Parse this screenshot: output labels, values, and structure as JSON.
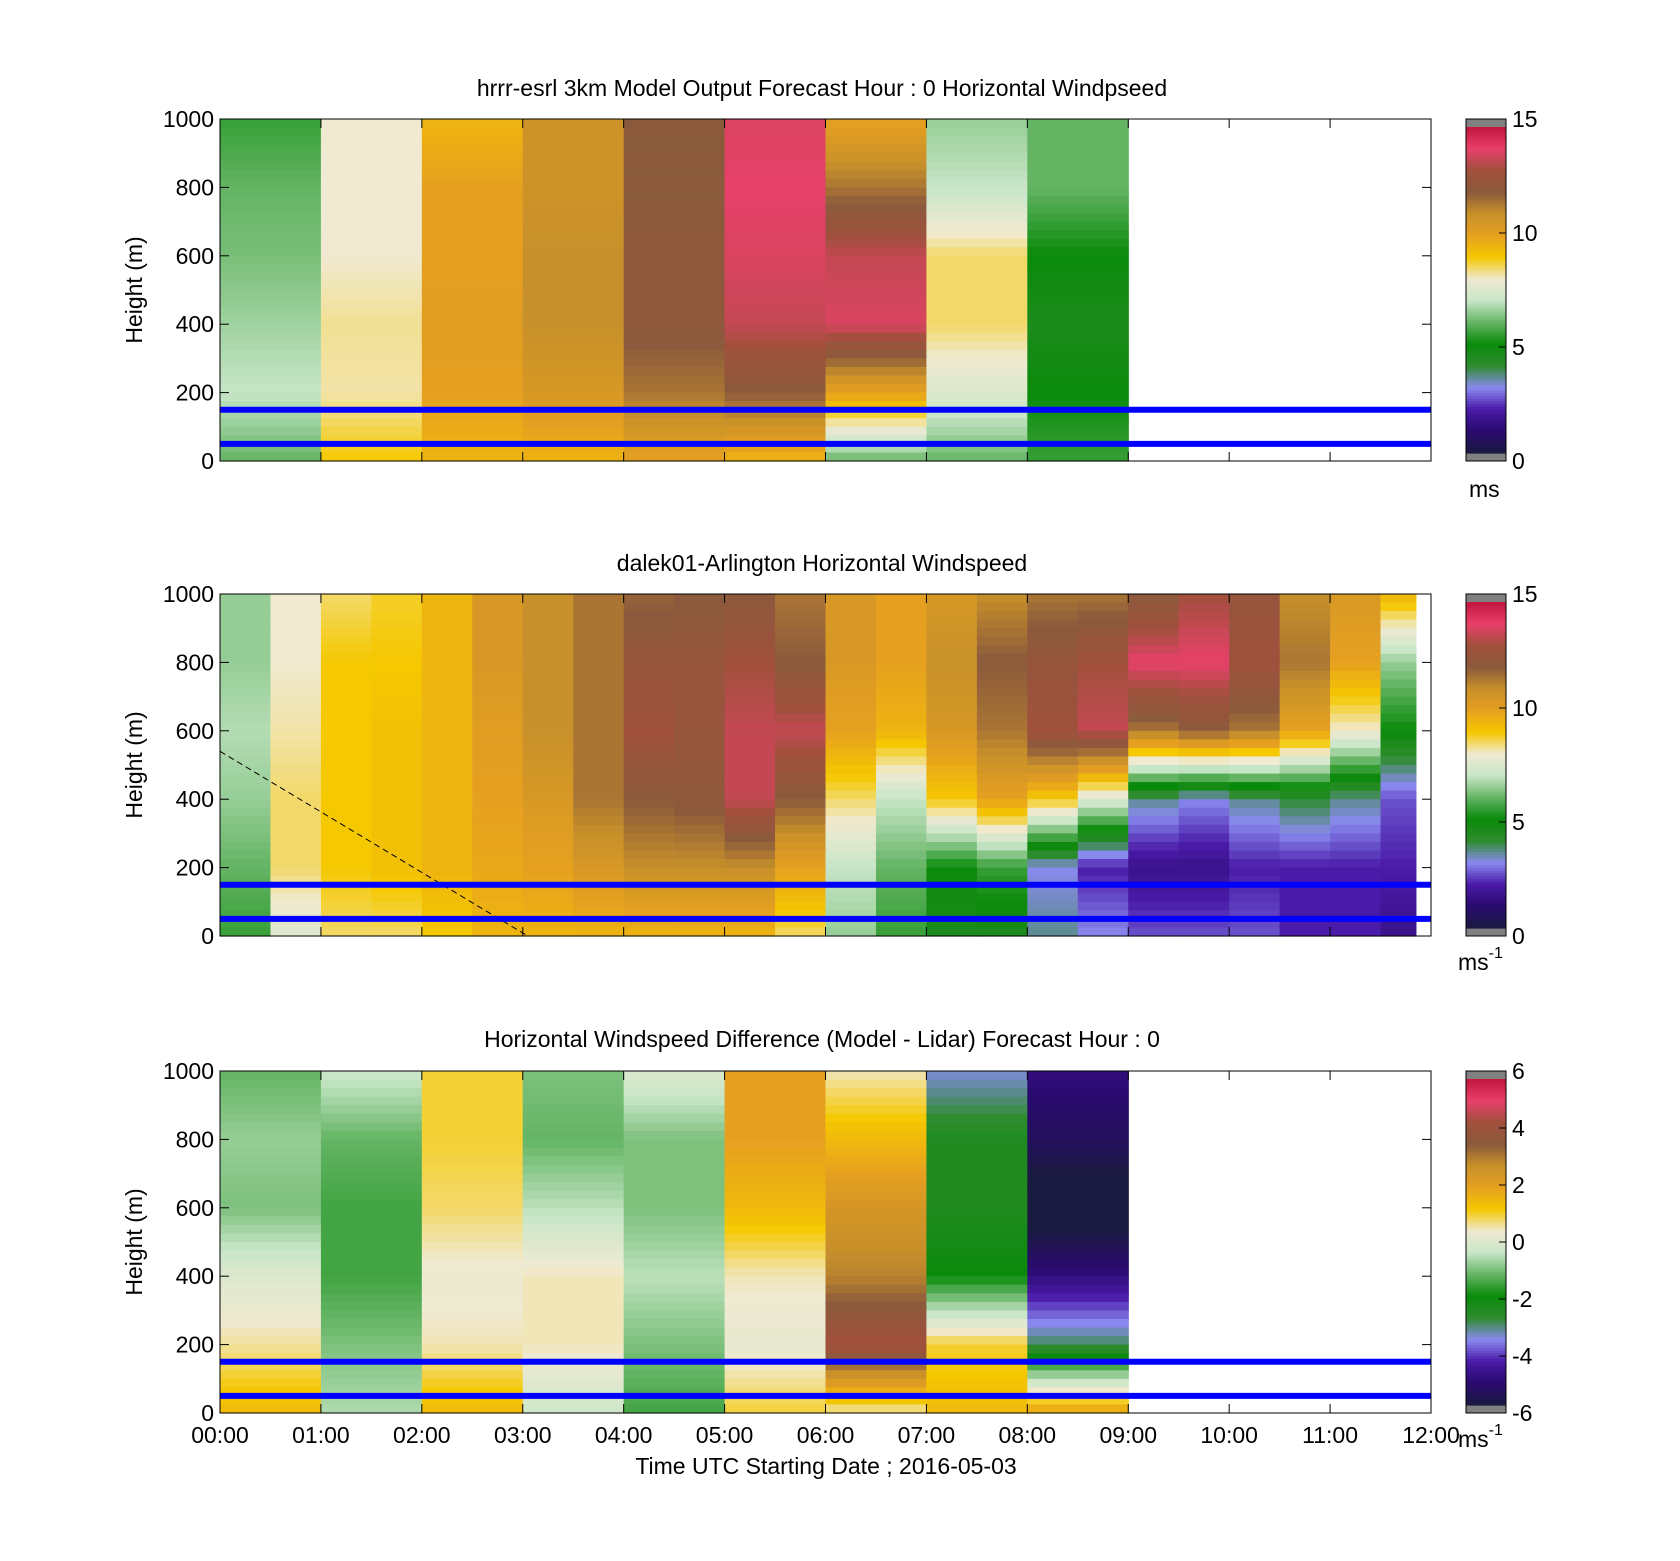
{
  "colorbar_stops": [
    "#1a1a40",
    "#2a0a6e",
    "#4a1aa8",
    "#8a8af0",
    "#2e8c2e",
    "#0a8a0a",
    "#64b464",
    "#c8e6c8",
    "#f0ead2",
    "#f5c800",
    "#e6a020",
    "#c8902a",
    "#8b5a3c",
    "#a0503c",
    "#e8406a",
    "#c0143c"
  ],
  "colorbar_end_color": "#808080",
  "blue_line_color": "#0000ff",
  "blue_lines_heights_m": [
    50,
    150
  ],
  "xtick_labels": [
    "00:00",
    "01:00",
    "02:00",
    "03:00",
    "04:00",
    "05:00",
    "06:00",
    "07:00",
    "08:00",
    "09:00",
    "10:00",
    "11:00",
    "12:00"
  ],
  "xlabel": "Time UTC  Starting Date ; 2016-05-03",
  "chart_data": [
    {
      "type": "heatmap",
      "title": "hrrr-esrl 3km Model Output   Forecast Hour : 0 Horizontal Windpseed",
      "ylabel": "Height (m)",
      "ylim": [
        0,
        1000
      ],
      "yticks": [
        "0",
        "200",
        "400",
        "600",
        "800",
        "1000"
      ],
      "xlim_hours": [
        0,
        12
      ],
      "colorbar": {
        "min": 0,
        "max": 15,
        "ticks": [
          "0",
          "5",
          "10",
          "15"
        ],
        "unit": "ms"
      },
      "heights_m": [
        1000,
        800,
        600,
        400,
        200,
        0
      ],
      "columns": [
        {
          "hour_start": 0,
          "hour_end": 1,
          "profile": [
            5.5,
            6.0,
            6.2,
            6.6,
            7.0,
            6.0
          ]
        },
        {
          "hour_start": 1,
          "hour_end": 2,
          "profile": [
            8.0,
            8.0,
            8.0,
            8.3,
            8.2,
            9.0
          ]
        },
        {
          "hour_start": 2,
          "hour_end": 3,
          "profile": [
            9.5,
            10.0,
            10.0,
            10.2,
            10.0,
            9.5
          ]
        },
        {
          "hour_start": 3,
          "hour_end": 4,
          "profile": [
            10.8,
            10.8,
            11.0,
            11.0,
            10.5,
            9.5
          ]
        },
        {
          "hour_start": 4,
          "hour_end": 5,
          "profile": [
            12.0,
            12.0,
            12.2,
            12.2,
            11.5,
            10.0
          ]
        },
        {
          "hour_start": 5,
          "hour_end": 6,
          "profile": [
            13.8,
            14.0,
            13.8,
            13.5,
            12.0,
            9.5
          ]
        },
        {
          "hour_start": 6,
          "hour_end": 7,
          "profile": [
            10.0,
            11.5,
            13.5,
            13.8,
            10.0,
            6.0
          ]
        },
        {
          "hour_start": 7,
          "hour_end": 8,
          "profile": [
            6.5,
            7.0,
            8.5,
            8.5,
            7.5,
            6.0
          ]
        },
        {
          "hour_start": 8,
          "hour_end": 9,
          "profile": [
            6.0,
            6.0,
            5.0,
            4.5,
            5.0,
            5.5
          ]
        }
      ],
      "horizontal_lines_m": [
        50,
        150
      ]
    },
    {
      "type": "heatmap",
      "title": "dalek01-Arlington  Horizontal Windspeed",
      "ylabel": "Height (m)",
      "ylim": [
        0,
        1000
      ],
      "yticks": [
        "0",
        "200",
        "400",
        "600",
        "800",
        "1000"
      ],
      "xlim_hours": [
        0,
        12
      ],
      "colorbar": {
        "min": 0,
        "max": 15,
        "ticks": [
          "0",
          "5",
          "10",
          "15"
        ],
        "unit": "ms-1"
      },
      "heights_m": [
        1000,
        800,
        600,
        400,
        200,
        0
      ],
      "columns": [
        {
          "hour_start": 0.0,
          "hour_end": 0.5,
          "profile": [
            6.5,
            6.5,
            6.8,
            6.5,
            6.0,
            5.5
          ]
        },
        {
          "hour_start": 0.5,
          "hour_end": 1.0,
          "profile": [
            8.0,
            8.0,
            8.2,
            8.5,
            8.5,
            7.5
          ]
        },
        {
          "hour_start": 1.0,
          "hour_end": 1.5,
          "profile": [
            8.5,
            9.0,
            9.0,
            9.0,
            9.0,
            8.5
          ]
        },
        {
          "hour_start": 1.5,
          "hour_end": 2.0,
          "profile": [
            8.8,
            9.0,
            9.2,
            9.2,
            9.2,
            8.5
          ]
        },
        {
          "hour_start": 2.0,
          "hour_end": 2.5,
          "profile": [
            9.5,
            9.5,
            9.5,
            9.5,
            9.5,
            9.0
          ]
        },
        {
          "hour_start": 2.5,
          "hour_end": 3.0,
          "profile": [
            10.5,
            10.5,
            10.2,
            10.0,
            9.8,
            9.5
          ]
        },
        {
          "hour_start": 3.0,
          "hour_end": 3.5,
          "profile": [
            11.0,
            11.0,
            11.0,
            10.5,
            10.0,
            9.5
          ]
        },
        {
          "hour_start": 3.5,
          "hour_end": 4.0,
          "profile": [
            11.5,
            11.5,
            11.5,
            11.5,
            10.5,
            9.5
          ]
        },
        {
          "hour_start": 4.0,
          "hour_end": 4.5,
          "profile": [
            11.8,
            12.5,
            13.0,
            12.0,
            11.0,
            9.5
          ]
        },
        {
          "hour_start": 4.5,
          "hour_end": 5.0,
          "profile": [
            12.0,
            12.5,
            12.5,
            12.2,
            11.0,
            9.5
          ]
        },
        {
          "hour_start": 5.0,
          "hour_end": 5.5,
          "profile": [
            12.0,
            13.0,
            13.5,
            13.5,
            11.0,
            9.5
          ]
        },
        {
          "hour_start": 5.5,
          "hour_end": 6.0,
          "profile": [
            11.5,
            12.0,
            13.5,
            12.0,
            10.0,
            8.5
          ]
        },
        {
          "hour_start": 6.0,
          "hour_end": 6.5,
          "profile": [
            10.5,
            10.5,
            10.0,
            8.5,
            7.0,
            6.5
          ]
        },
        {
          "hour_start": 6.5,
          "hour_end": 7.0,
          "profile": [
            10.0,
            10.0,
            9.5,
            7.0,
            6.0,
            5.5
          ]
        },
        {
          "hour_start": 7.0,
          "hour_end": 7.5,
          "profile": [
            10.5,
            11.0,
            10.5,
            9.0,
            5.0,
            4.5
          ]
        },
        {
          "hour_start": 7.5,
          "hour_end": 8.0,
          "profile": [
            11.0,
            12.0,
            11.5,
            10.0,
            5.5,
            4.5
          ]
        },
        {
          "hour_start": 8.0,
          "hour_end": 8.5,
          "profile": [
            11.5,
            12.5,
            13.0,
            9.0,
            3.0,
            3.5
          ]
        },
        {
          "hour_start": 8.5,
          "hour_end": 9.0,
          "profile": [
            11.5,
            13.0,
            13.5,
            7.5,
            2.0,
            3.0
          ]
        },
        {
          "hour_start": 9.0,
          "hour_end": 9.5,
          "profile": [
            12.0,
            14.0,
            11.5,
            3.5,
            1.5,
            2.5
          ]
        },
        {
          "hour_start": 9.5,
          "hour_end": 10.0,
          "profile": [
            13.0,
            14.0,
            12.0,
            3.0,
            1.5,
            2.5
          ]
        },
        {
          "hour_start": 10.0,
          "hour_end": 10.5,
          "profile": [
            12.5,
            13.0,
            11.5,
            3.5,
            2.0,
            2.5
          ]
        },
        {
          "hour_start": 10.5,
          "hour_end": 11.0,
          "profile": [
            11.0,
            11.5,
            10.0,
            4.0,
            2.0,
            2.0
          ]
        },
        {
          "hour_start": 11.0,
          "hour_end": 11.5,
          "profile": [
            10.5,
            10.0,
            8.0,
            3.5,
            2.0,
            2.0
          ]
        },
        {
          "hour_start": 11.5,
          "hour_end": 11.85,
          "profile": [
            9.5,
            6.5,
            5.0,
            2.5,
            2.0,
            1.5
          ]
        }
      ],
      "dashed_line": {
        "from_hour": 0,
        "from_height_m": 540,
        "to_hour": 3.05,
        "to_height_m": 0
      },
      "horizontal_lines_m": [
        50,
        150
      ]
    },
    {
      "type": "heatmap",
      "title": "Horizontal Windspeed Difference (Model - Lidar) Forecast Hour : 0",
      "ylabel": "Height (m)",
      "ylim": [
        0,
        1000
      ],
      "yticks": [
        "0",
        "200",
        "400",
        "600",
        "800",
        "1000"
      ],
      "xlim_hours": [
        0,
        12
      ],
      "colorbar": {
        "min": -6,
        "max": 6,
        "ticks": [
          "-6",
          "-4",
          "-2",
          "0",
          "2",
          "4",
          "6"
        ],
        "unit": "ms-1"
      },
      "heights_m": [
        1000,
        800,
        600,
        400,
        200,
        0
      ],
      "columns": [
        {
          "hour_start": 0,
          "hour_end": 1,
          "profile": [
            -1.2,
            -0.8,
            -1.0,
            0.0,
            0.6,
            1.5
          ]
        },
        {
          "hour_start": 1,
          "hour_end": 2,
          "profile": [
            -0.3,
            -1.2,
            -1.5,
            -1.5,
            -1.0,
            -0.6
          ]
        },
        {
          "hour_start": 2,
          "hour_end": 3,
          "profile": [
            1.0,
            1.0,
            0.8,
            0.3,
            0.5,
            1.5
          ]
        },
        {
          "hour_start": 3,
          "hour_end": 4,
          "profile": [
            -1.0,
            -1.2,
            -0.5,
            0.5,
            0.5,
            -0.3
          ]
        },
        {
          "hour_start": 4,
          "hour_end": 5,
          "profile": [
            0.0,
            -1.0,
            -1.0,
            -0.5,
            -1.0,
            -1.5
          ]
        },
        {
          "hour_start": 5,
          "hour_end": 6,
          "profile": [
            2.0,
            2.0,
            1.5,
            0.5,
            0.2,
            1.0
          ]
        },
        {
          "hour_start": 6,
          "hour_end": 7,
          "profile": [
            0.5,
            1.5,
            2.5,
            3.0,
            4.5,
            0.5
          ]
        },
        {
          "hour_start": 7,
          "hour_end": 8,
          "profile": [
            -3.5,
            -2.5,
            -2.5,
            -2.0,
            1.0,
            1.5
          ]
        },
        {
          "hour_start": 8,
          "hour_end": 9,
          "profile": [
            -5.0,
            -5.5,
            -6.5,
            -5.0,
            -3.0,
            2.0
          ]
        }
      ],
      "horizontal_lines_m": [
        50,
        150
      ]
    }
  ]
}
